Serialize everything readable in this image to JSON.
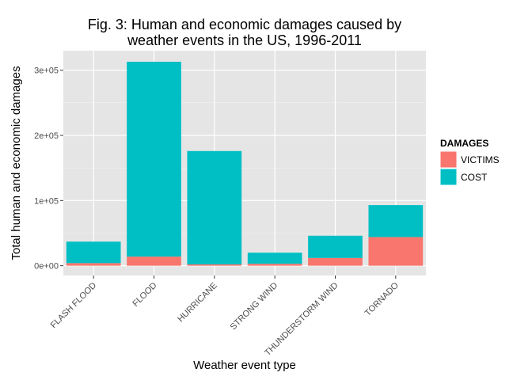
{
  "chart_data": {
    "type": "bar",
    "stacked": true,
    "title_lines": [
      "Fig. 3: Human and economic damages caused by",
      "weather events in the US, 1996-2011"
    ],
    "xlabel": "Weather event type",
    "ylabel": "Total human and economic damages",
    "categories": [
      "FLASH FLOOD",
      "FLOOD",
      "HURRICANE",
      "STRONG WIND",
      "THUNDERSTORM WIND",
      "TORNADO"
    ],
    "series": [
      {
        "name": "VICTIMS",
        "color": "#F8766D",
        "values": [
          4000,
          14000,
          2000,
          3000,
          12000,
          44000
        ]
      },
      {
        "name": "COST",
        "color": "#00BFC4",
        "values": [
          33000,
          299000,
          174000,
          17000,
          34000,
          49000
        ]
      }
    ],
    "yticks": [
      0,
      100000,
      200000,
      300000
    ],
    "ytick_labels": [
      "0e+00",
      "1e+05",
      "2e+05",
      "3e+05"
    ],
    "ylim": [
      -15000,
      330000
    ],
    "grid": true,
    "legend": {
      "title": "DAMAGES",
      "position": "right"
    }
  }
}
